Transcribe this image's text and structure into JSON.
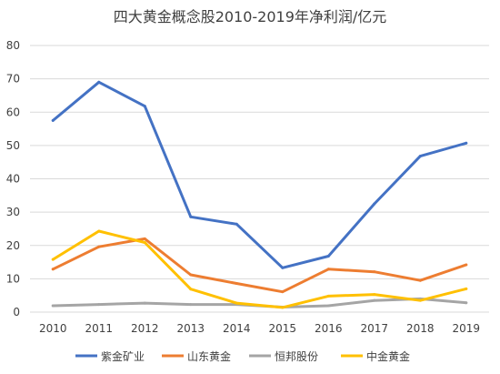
{
  "chart_data": {
    "type": "line",
    "title": "四大黄金概念股2010-2019年净利润/亿元",
    "xlabel": "",
    "ylabel": "",
    "x": [
      "2010",
      "2011",
      "2012",
      "2013",
      "2014",
      "2015",
      "2016",
      "2017",
      "2018",
      "2019"
    ],
    "ylim": [
      0,
      80
    ],
    "yticks": [
      "0",
      "10",
      "20",
      "30",
      "40",
      "50",
      "60",
      "70",
      "80"
    ],
    "grid": true,
    "legend_position": "bottom",
    "series": [
      {
        "name": "紫金矿业",
        "color": "#4472c4",
        "values": [
          57.5,
          69,
          61.8,
          28.6,
          26.4,
          13.3,
          16.8,
          32.5,
          46.8,
          50.7
        ]
      },
      {
        "name": "山东黄金",
        "color": "#ed7d31",
        "values": [
          12.9,
          19.6,
          22,
          11.2,
          8.6,
          6.1,
          12.9,
          12.1,
          9.5,
          14.2
        ]
      },
      {
        "name": "恒邦股份",
        "color": "#a5a5a5",
        "values": [
          1.9,
          2.3,
          2.7,
          2.3,
          2.3,
          1.5,
          1.9,
          3.5,
          4,
          2.8
        ]
      },
      {
        "name": "中金黄金",
        "color": "#ffc000",
        "values": [
          15.8,
          24.3,
          20.9,
          6.9,
          2.7,
          1.4,
          4.8,
          5.3,
          3.5,
          7
        ]
      }
    ]
  }
}
